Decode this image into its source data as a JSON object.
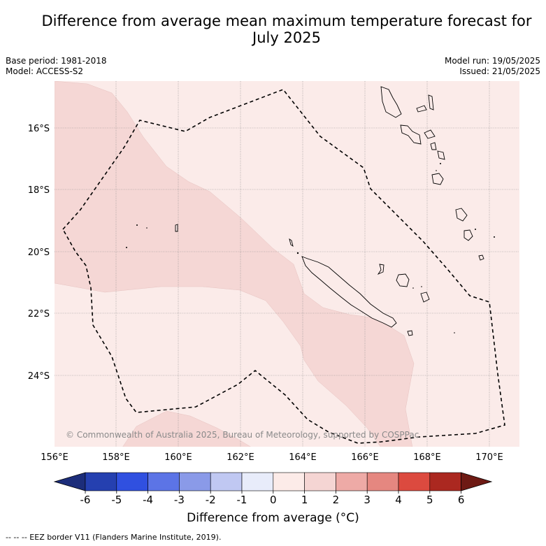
{
  "title": "Difference from average mean maximum temperature forecast for July 2025",
  "base_period": "Base period: 1981-2018",
  "model": "Model: ACCESS-S2",
  "model_run": "Model run: 19/05/2025",
  "issued": "Issued: 21/05/2025",
  "copyright": "© Commonwealth of Australia 2025, Bureau of Meteorology, supported by COSPPac",
  "lat_labels": [
    "16°S",
    "18°S",
    "20°S",
    "22°S",
    "24°S"
  ],
  "lon_labels": [
    "156°E",
    "158°E",
    "160°E",
    "162°E",
    "164°E",
    "166°E",
    "168°E",
    "170°E"
  ],
  "colorbar": {
    "ticks": [
      "-6",
      "-5",
      "-4",
      "-3",
      "-2",
      "-1",
      "0",
      "1",
      "2",
      "3",
      "4",
      "5",
      "6"
    ],
    "colors": [
      "#1c2d7a",
      "#2540b0",
      "#3050e0",
      "#5c74e6",
      "#8a9ae8",
      "#c0c8f2",
      "#e8ecfa",
      "#fcebe8",
      "#f5d5d3",
      "#eeaaa6",
      "#e58780",
      "#dc4a3f",
      "#ab2820",
      "#6e1a14"
    ],
    "label": "Difference from average (°C)"
  },
  "eez_legend": "--  --  -- EEZ border V11 (Flanders Marine Institute, 2019).",
  "map_colors": {
    "background": "#fbebe9",
    "anomaly_1_to_2": "#f5d7d5"
  }
}
